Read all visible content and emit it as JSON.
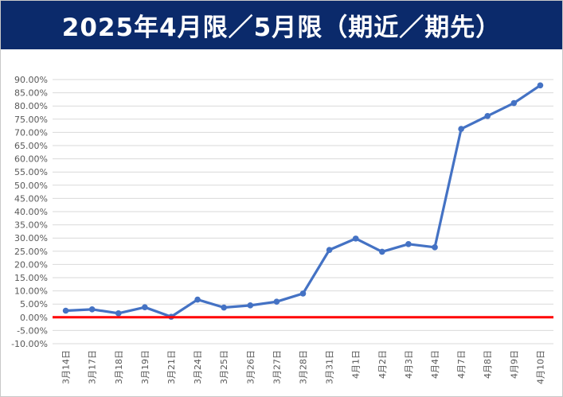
{
  "header": {
    "title": "2025年4月限／5月限（期近／期先）"
  },
  "chart_data": {
    "type": "line",
    "title": "2025年4月限／5月限（期近／期先）",
    "xlabel": "",
    "ylabel": "",
    "categories": [
      "3月14日",
      "3月17日",
      "3月18日",
      "3月19日",
      "3月21日",
      "3月24日",
      "3月25日",
      "3月26日",
      "3月27日",
      "3月28日",
      "3月31日",
      "4月1日",
      "4月2日",
      "4月3日",
      "4月4日",
      "4月7日",
      "4月8日",
      "4月9日",
      "4月10日"
    ],
    "series": [
      {
        "values": [
          2.5,
          3.0,
          1.5,
          3.8,
          0.2,
          6.7,
          3.7,
          4.5,
          5.9,
          9.0,
          25.5,
          29.8,
          24.8,
          27.7,
          26.5,
          71.3,
          76.2,
          81.1,
          87.8
        ]
      }
    ],
    "y_ticks": [
      "90.00%",
      "85.00%",
      "80.00%",
      "75.00%",
      "70.00%",
      "65.00%",
      "60.00%",
      "55.00%",
      "50.00%",
      "45.00%",
      "40.00%",
      "35.00%",
      "30.00%",
      "25.00%",
      "20.00%",
      "15.00%",
      "10.00%",
      "5.00%",
      "0.00%",
      "-5.00%",
      "-10.00%"
    ],
    "ylim": [
      -10,
      90
    ],
    "reference_line": 0,
    "grid": true,
    "colors": {
      "series": "#4472c4",
      "reference": "#ff0000",
      "grid": "#d9d9d9",
      "title_bg": "#0b2a6b"
    }
  }
}
